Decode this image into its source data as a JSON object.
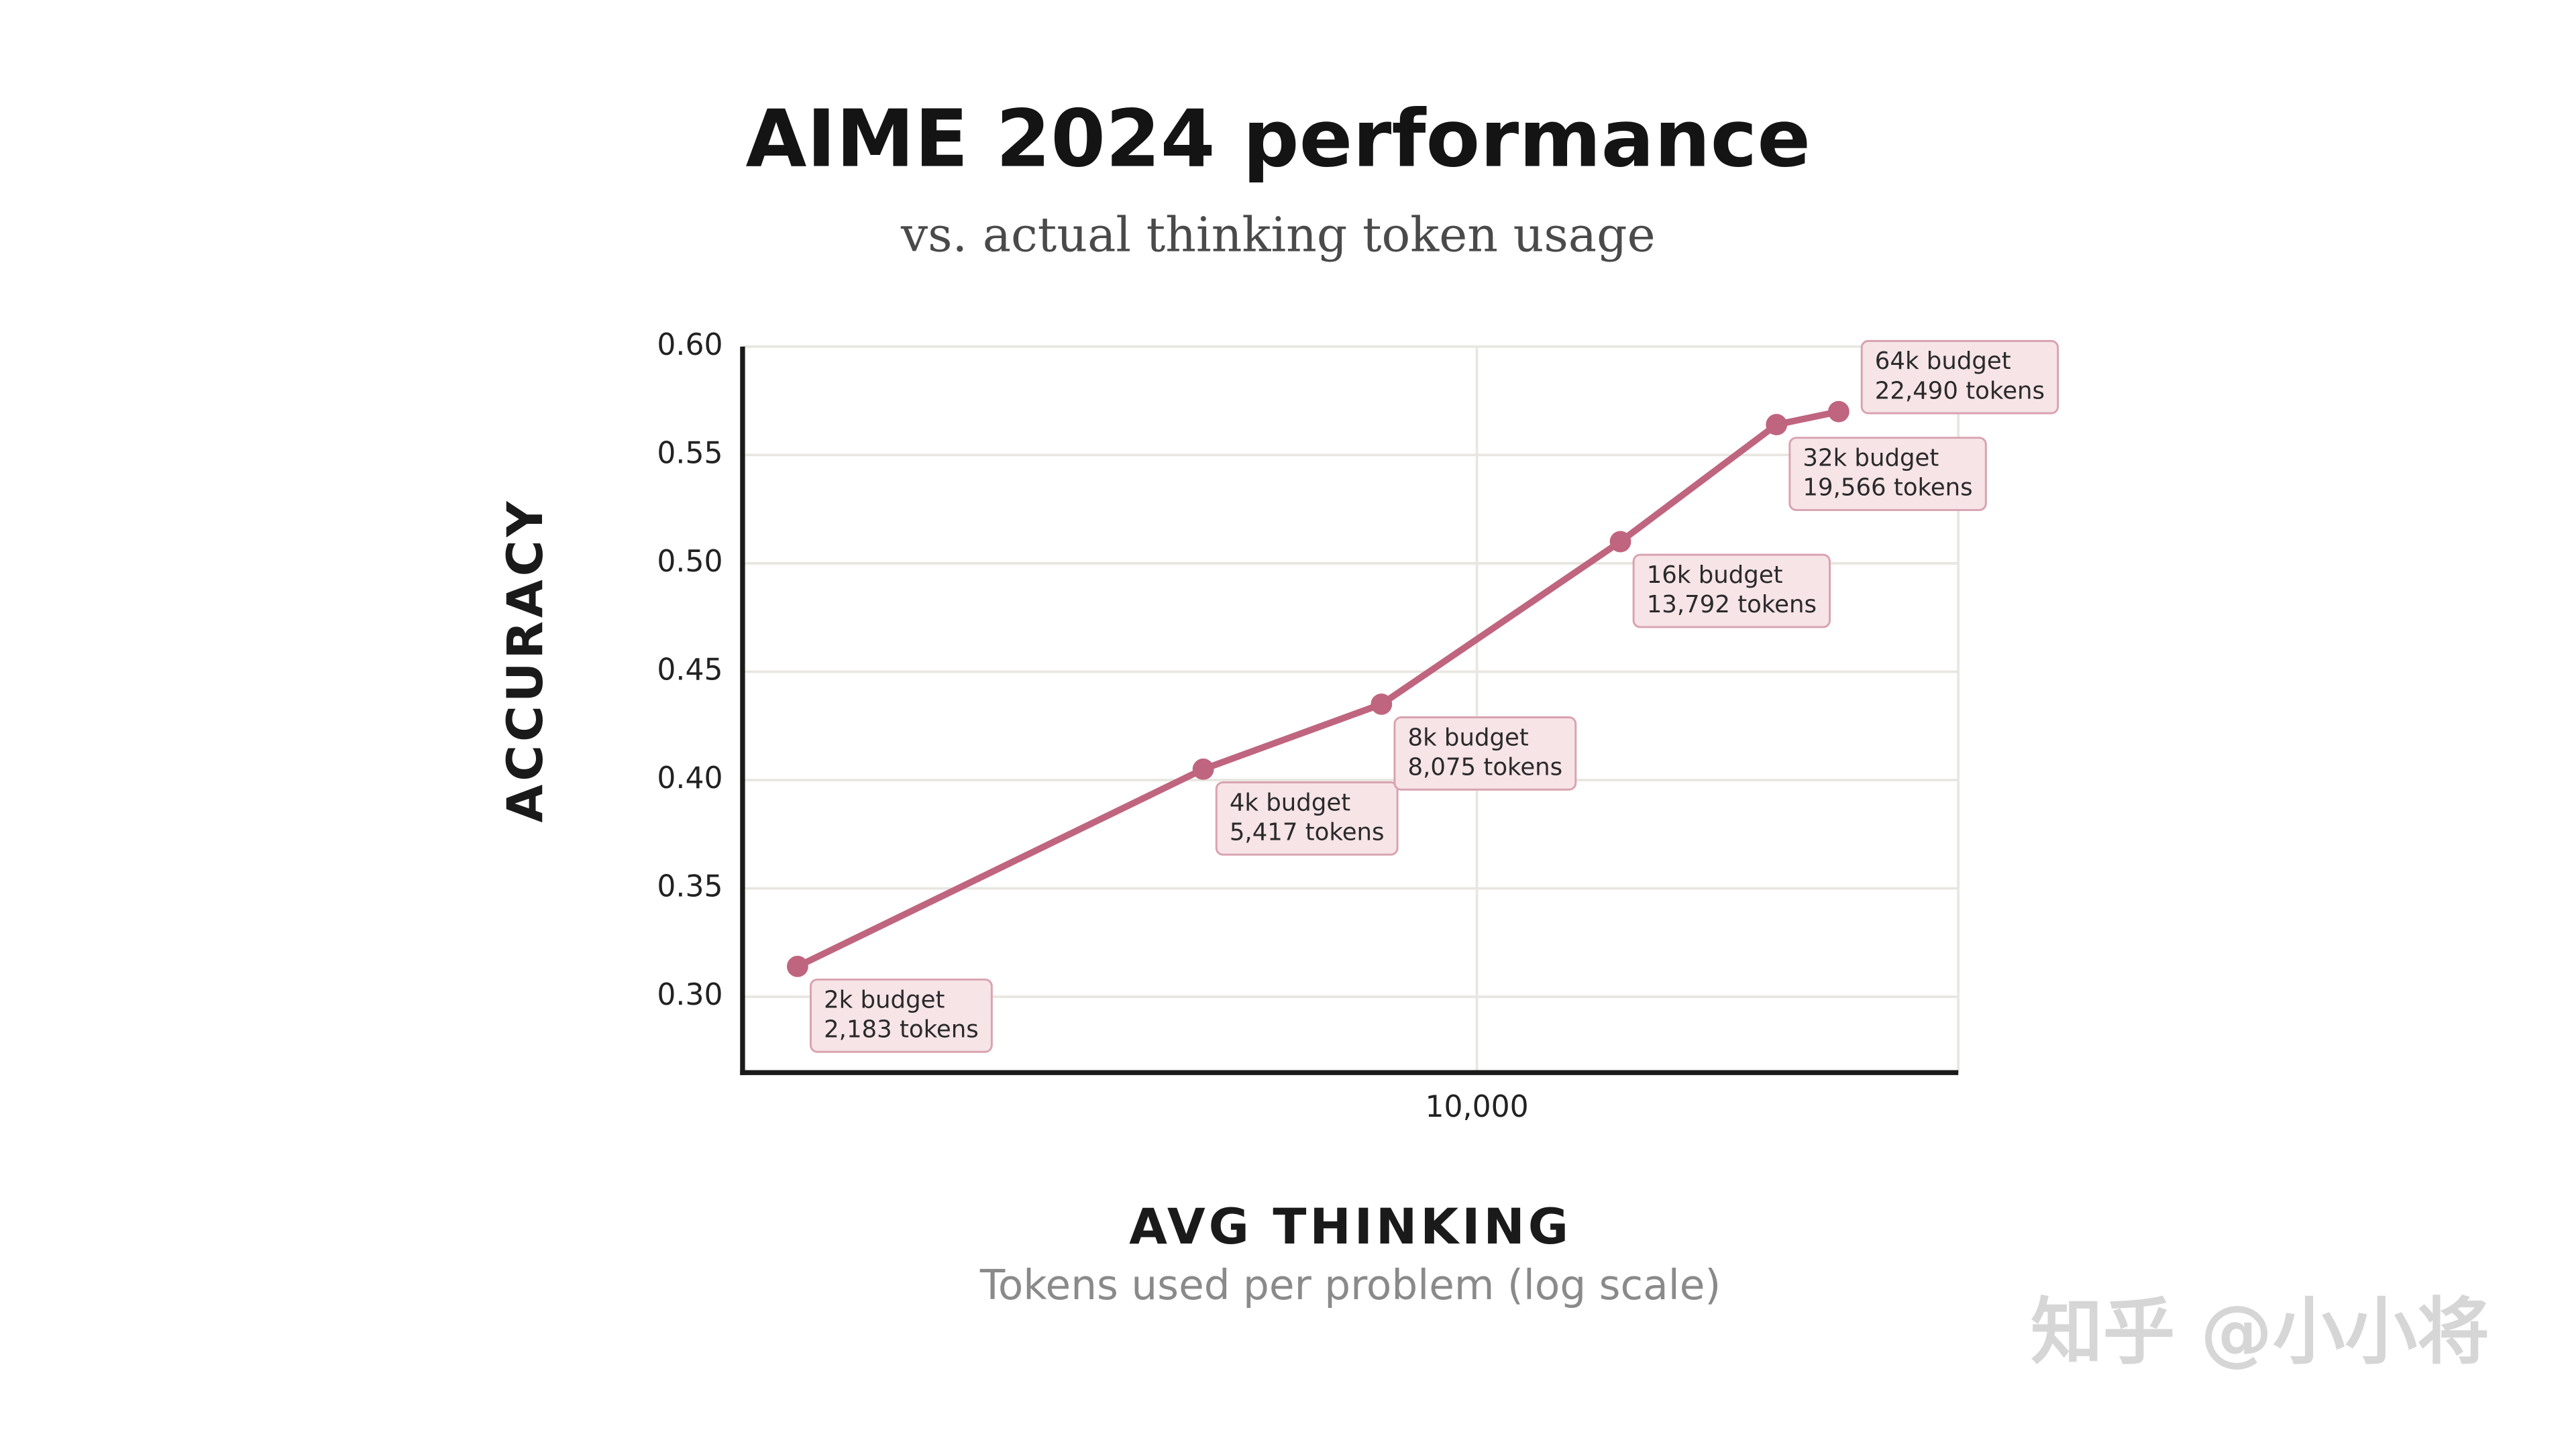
{
  "chart_data": {
    "type": "line",
    "title": "AIME 2024 performance",
    "subtitle": "vs. actual thinking token usage",
    "x_label": "AVG THINKING",
    "x_sublabel": "Tokens used per problem (log scale)",
    "y_label": "ACCURACY",
    "x_scale": "log",
    "grid": true,
    "xlim": [
      1930,
      29400
    ],
    "ylim": [
      0.265,
      0.6
    ],
    "xticks": [
      {
        "value": 10000,
        "label": "10,000"
      }
    ],
    "yticks": [
      {
        "value": 0.3,
        "label": "0.30"
      },
      0.35,
      {
        "value": 0.4,
        "label": "0.40"
      },
      0.45,
      {
        "value": 0.5,
        "label": "0.50"
      },
      0.55,
      {
        "value": 0.6,
        "label": "0.60"
      }
    ],
    "series": [
      {
        "color": "#c0657f",
        "x": [
          2183,
          5417,
          8075,
          13792,
          19566,
          22490
        ],
        "values": [
          0.314,
          0.405,
          0.435,
          0.51,
          0.564,
          0.57
        ],
        "budget_labels": [
          "2k budget",
          "4k budget",
          "8k budget",
          "16k budget",
          "32k budget",
          "64k budget"
        ],
        "x_labels": [
          "2,183 tokens",
          "5,417 tokens",
          "8,075 tokens",
          "13,792 tokens",
          "19,566 tokens",
          "22,490 tokens"
        ]
      }
    ],
    "watermark": "知乎 @小小将"
  }
}
